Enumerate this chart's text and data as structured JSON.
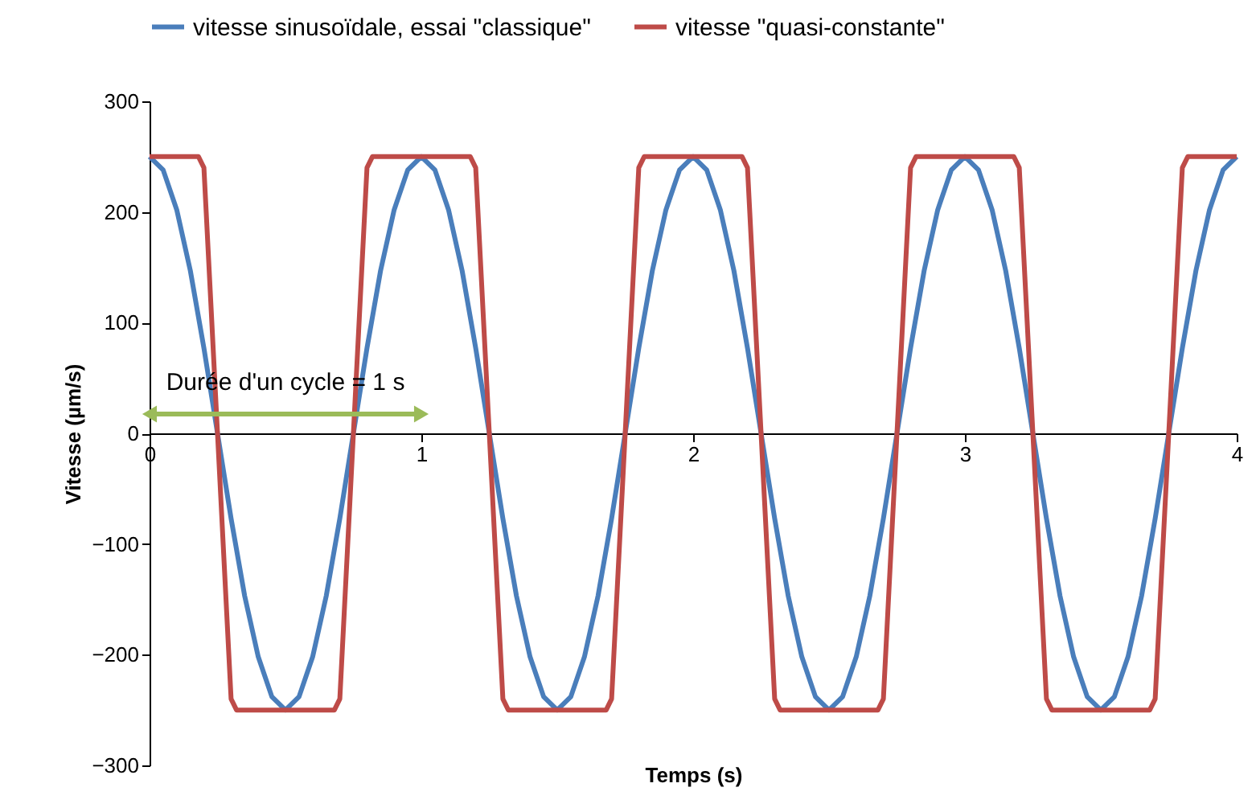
{
  "chart_data": {
    "type": "line",
    "xlabel": "Temps (s)",
    "ylabel": "Vitesse (µm/s)",
    "xlim": [
      0,
      4
    ],
    "xticks": [
      0,
      1,
      2,
      3,
      4
    ],
    "ylim": [
      -300,
      300
    ],
    "yticks": [
      -300,
      -200,
      -100,
      0,
      100,
      200,
      300
    ],
    "grid": false,
    "legend": "top",
    "marker": "none",
    "line_style": "solid",
    "annotations": [
      "Durée d'un cycle = 1 s"
    ],
    "series": [
      {
        "name": "vitesse sinusoïdale, essai \"classique\"",
        "color": "#4a7ebb",
        "x": [
          0,
          0.05,
          0.1,
          0.15,
          0.2,
          0.25,
          0.3,
          0.35,
          0.4,
          0.45,
          0.5,
          0.55,
          0.6,
          0.65,
          0.7,
          0.75,
          0.8,
          0.85,
          0.9,
          0.95,
          1,
          1.05,
          1.1,
          1.15,
          1.2,
          1.25,
          1.3,
          1.35,
          1.4,
          1.45,
          1.5,
          1.55,
          1.6,
          1.65,
          1.7,
          1.75,
          1.8,
          1.85,
          1.9,
          1.95,
          2,
          2.05,
          2.1,
          2.15,
          2.2,
          2.25,
          2.3,
          2.35,
          2.4,
          2.45,
          2.5,
          2.55,
          2.6,
          2.65,
          2.7,
          2.75,
          2.8,
          2.85,
          2.9,
          2.95,
          3,
          3.05,
          3.1,
          3.15,
          3.2,
          3.25,
          3.3,
          3.35,
          3.4,
          3.45,
          3.5,
          3.55,
          3.6,
          3.65,
          3.7,
          3.75,
          3.8,
          3.85,
          3.9,
          3.95,
          4
        ],
        "values": [
          250,
          238,
          202,
          147,
          77,
          0,
          -77,
          -147,
          -202,
          -238,
          -250,
          -238,
          -202,
          -147,
          -77,
          0,
          77,
          147,
          202,
          238,
          250,
          238,
          202,
          147,
          77,
          0,
          -77,
          -147,
          -202,
          -238,
          -250,
          -238,
          -202,
          -147,
          -77,
          0,
          77,
          147,
          202,
          238,
          250,
          238,
          202,
          147,
          77,
          0,
          -77,
          -147,
          -202,
          -238,
          -250,
          -238,
          -202,
          -147,
          -77,
          0,
          77,
          147,
          202,
          238,
          250,
          238,
          202,
          147,
          77,
          0,
          -77,
          -147,
          -202,
          -238,
          -250,
          -238,
          -202,
          -147,
          -77,
          0,
          77,
          147,
          202,
          238,
          250
        ]
      },
      {
        "name": "vitesse \"quasi-constante\"",
        "color": "#be4b48",
        "x": [
          0,
          0.18,
          0.2,
          0.25,
          0.3,
          0.32,
          0.68,
          0.7,
          0.75,
          0.8,
          0.82,
          1.18,
          1.2,
          1.25,
          1.3,
          1.32,
          1.68,
          1.7,
          1.75,
          1.8,
          1.82,
          2.18,
          2.2,
          2.25,
          2.3,
          2.32,
          2.68,
          2.7,
          2.75,
          2.8,
          2.82,
          3.18,
          3.2,
          3.25,
          3.3,
          3.32,
          3.68,
          3.7,
          3.75,
          3.8,
          3.82,
          4
        ],
        "values": [
          250,
          250,
          240,
          0,
          -240,
          -250,
          -250,
          -240,
          0,
          240,
          250,
          250,
          240,
          0,
          -240,
          -250,
          -250,
          -240,
          0,
          240,
          250,
          250,
          240,
          0,
          -240,
          -250,
          -250,
          -240,
          0,
          240,
          250,
          250,
          240,
          0,
          -240,
          -250,
          -250,
          -240,
          0,
          240,
          250,
          250
        ]
      }
    ]
  }
}
